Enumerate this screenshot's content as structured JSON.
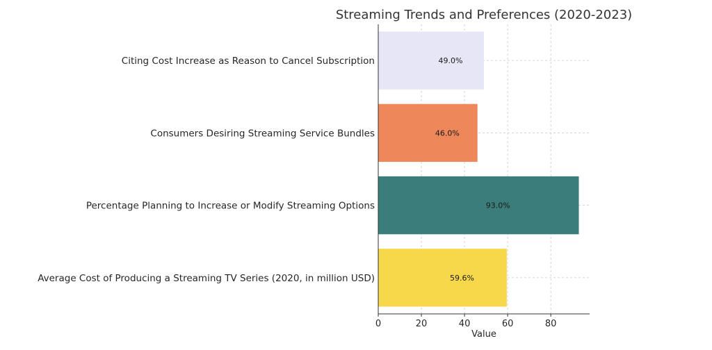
{
  "chart_data": {
    "type": "bar",
    "orientation": "horizontal",
    "title": "Streaming Trends and Preferences (2020-2023)",
    "xlabel": "Value",
    "ylabel": "",
    "xlim": [
      0,
      98
    ],
    "xticks": [
      0,
      20,
      40,
      60,
      80
    ],
    "grid": true,
    "categories": [
      "Citing Cost Increase as Reason to Cancel Subscription",
      "Consumers Desiring Streaming Service Bundles",
      "Percentage Planning to Increase or Modify Streaming Options",
      "Average Cost of Producing a Streaming TV Series (2020, in million USD)"
    ],
    "values": [
      49.0,
      46.0,
      93.0,
      59.6
    ],
    "data_labels": [
      "49.0%",
      "46.0%",
      "93.0%",
      "59.6%"
    ],
    "colors": [
      "#e6e6f7",
      "#ee8759",
      "#3a7d7b",
      "#f7d84a"
    ]
  }
}
